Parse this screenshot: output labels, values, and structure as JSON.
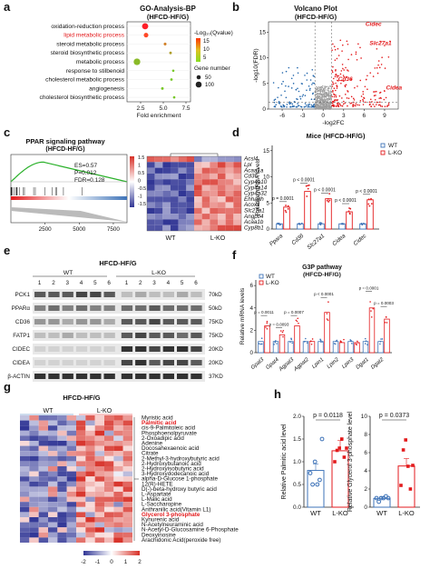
{
  "panel_labels": [
    "a",
    "b",
    "c",
    "d",
    "e",
    "f",
    "g",
    "h"
  ],
  "colors": {
    "red": "#e31a1c",
    "blue": "#2166ac",
    "grey": "#9e9e9e",
    "wt": "#3e73b8",
    "lko": "#e31a1c"
  },
  "panel_a": {
    "title_line1": "GO-Analysis-BP",
    "title_line2": "(HFCD-HF/G)",
    "terms": [
      "oxidation-reduction process",
      "lipid metabolic process",
      "steroid metabolic process",
      "steroid biosynthetic process",
      "metabolic process",
      "response to stilbenoid",
      "cholesterol metabolic process",
      "angiogenesis",
      "cholesterol biosynthetic process"
    ],
    "highlight_index": 1,
    "xlabel": "Fold enrichment",
    "xticks": [
      "2.5",
      "5.0",
      "7.5"
    ],
    "color_title": "-Log₁₀(Qvalue)",
    "color_ticks": [
      "15",
      "10",
      "5"
    ],
    "size_title": "Gene number",
    "size_ticks": [
      "50",
      "100"
    ]
  },
  "panel_b": {
    "title_line1": "Volcano Plot",
    "title_line2": "(HFCD-HF/G)",
    "ylabel": "-log10(FDR)",
    "xlabel": "-log2FC",
    "xticks": [
      "-6",
      "-3",
      "0",
      "3",
      "6",
      "9"
    ],
    "yticks": [
      "0",
      "5",
      "10",
      "15"
    ],
    "genes": [
      "Cidec",
      "Slc27a1",
      "Cd36",
      "Cidea"
    ]
  },
  "panel_c": {
    "title_line1": "PPAR signaling pathway",
    "title_line2": "(HFCD-HF/G)",
    "stats": [
      "ES=0.57",
      "P=0.012",
      "FDR=0.128"
    ],
    "xticks": [
      "2500",
      "5000",
      "7500"
    ],
    "genes": [
      "Acsl4",
      "Lpl",
      "Acaa1a",
      "Cd36",
      "Cyp4a10",
      "Cyp4a14",
      "Cyp4a32",
      "Ehhadh",
      "Acox1",
      "Slc27a1",
      "Angptl4",
      "Acaa1b",
      "Cyp8b1"
    ],
    "groups": [
      "WT",
      "L-KO"
    ],
    "scale_ticks": [
      "1.5",
      "1",
      "0.5",
      "0",
      "-0.5",
      "-1",
      "-1.5"
    ]
  },
  "panel_d": {
    "title": "Mice (HFCD-HF/G)",
    "ylabel": "Relative mRNA levels",
    "yticks": [
      "0",
      "5",
      "10",
      "15"
    ],
    "categories": [
      "Ppara",
      "Cd36",
      "Slc27a1",
      "Cidea",
      "Cidec"
    ],
    "pvals": [
      "p = 0.0001",
      "p < 0.0001",
      "p < 0.0001",
      "p < 0.0001",
      "p < 0.0001"
    ],
    "legend": [
      "WT",
      "L-KO"
    ]
  },
  "panel_e": {
    "title": "HFCD-HF/G",
    "groups": [
      "WT",
      "L-KO"
    ],
    "lanes": [
      "1",
      "2",
      "3",
      "4",
      "5",
      "6",
      "1",
      "2",
      "3",
      "4",
      "5",
      "6"
    ],
    "proteins": [
      "PCK1",
      "PPARα",
      "CD36",
      "FATP1",
      "CIDEC",
      "CIDEA",
      "β-ACTIN"
    ],
    "sizes": [
      "70kD",
      "50kD",
      "75KD",
      "75KD",
      "20KD",
      "20KD",
      "37KD"
    ]
  },
  "panel_f": {
    "title_line1": "G3P pathway",
    "title_line2": "(HFCD-HF/G)",
    "ylabel": "Relative mRNA levels",
    "yticks": [
      "0",
      "2",
      "4",
      "6"
    ],
    "categories": [
      "Gpat3",
      "Gpat4",
      "Agpat3",
      "Agpat2",
      "Lpin1",
      "Lpin2",
      "Lpin3",
      "Dgat1",
      "Dgat2"
    ],
    "pvals": [
      "p = 0.0011",
      "p = 0.0093",
      "p = 0.0007",
      "p < 0.0001",
      "p = 0.0001",
      "p = 0.0003"
    ],
    "legend": [
      "WT",
      "L-KO"
    ]
  },
  "panel_g": {
    "title": "HFCD-HF/G",
    "groups": [
      "WT",
      "L-KO"
    ],
    "metabolites": [
      "Myristic acid",
      "Palmitic acid",
      "cis-9-Palmitoleic acid",
      "Phosphoenolpyruvate",
      "2-Oxoadipic acid",
      "Adenine",
      "Docosahexaenoic acid",
      "Citrate",
      "2-Methyl-3-hydroxybutyric acid",
      "2-Hydroxybutanoic acid",
      "2-Hydroxyisobutyric acid",
      "3-Hydroxydodecanoic acid",
      "alpha-D-Glucose 1-phosphate",
      "12(R)-HETE",
      "D(-)-beta-hydroxy butyric acid",
      "L-Aspartate",
      "L-Malic acid",
      "L-Saccharopine",
      "Anthranilic acid(Vitamin L1)",
      "Glycerol 3-phosphate",
      "Kynurenic acid",
      "N-Acetylneuraminic acid",
      "N-Acetyl-D-Glucosamine 6-Phosphate",
      "Deoxyinosine",
      "Arachidonic Acid(peroxide free)"
    ],
    "highlight_indices": [
      1,
      19
    ],
    "scale_ticks": [
      "-2",
      "-1",
      "0",
      "1",
      "2"
    ]
  },
  "panel_h": {
    "ylabel1": "Relative Palmitic acid level",
    "ylabel2": "Relative Glycerol 3-phosphate level",
    "pval1": "p = 0.0118",
    "pval2": "p = 0.0373",
    "yticks1": [
      "0.0",
      "0.5",
      "1.0",
      "1.5",
      "2.0"
    ],
    "yticks2": [
      "0",
      "2",
      "4",
      "6",
      "8",
      "10"
    ],
    "groups": [
      "WT",
      "L-KO"
    ]
  }
}
